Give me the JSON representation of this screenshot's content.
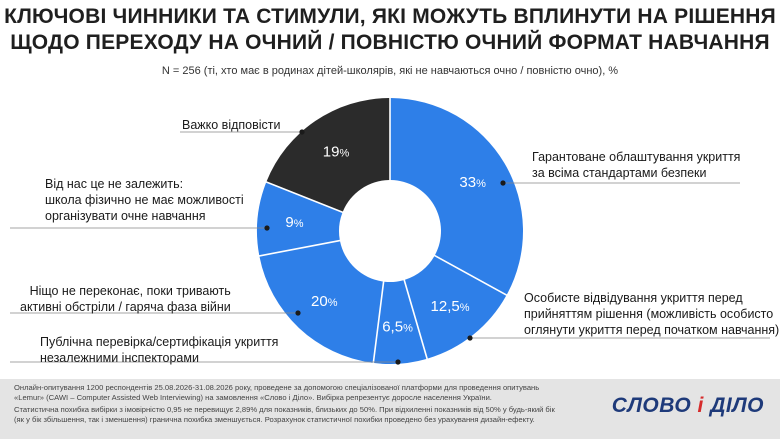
{
  "header": {
    "title_line1": "КЛЮЧОВІ ЧИННИКИ ТА СТИМУЛИ, ЯКІ МОЖУТЬ ВПЛИНУТИ НА РІШЕННЯ",
    "title_line2": "ЩОДО ПЕРЕХОДУ НА ОЧНИЙ / ПОВНІСТЮ ОЧНИЙ ФОРМАТ НАВЧАННЯ",
    "subtitle": "N = 256 (ті, хто має в родинах дітей-школярів, які не навчаються очно / повністю очно), %"
  },
  "chart_data": {
    "type": "pie",
    "variant": "donut",
    "unit": "%",
    "slices": [
      {
        "label_lines": [
          "Гарантоване облаштування укриття",
          "за всіма стандартами безпеки"
        ],
        "value": 33,
        "value_text": "33",
        "color": "#2e7fe8"
      },
      {
        "label_lines": [
          "Особисте відвідування укриття перед",
          "прийняттям рішення (можливість особисто",
          "оглянути укриття перед початком навчання)"
        ],
        "value": 12.5,
        "value_text": "12,5",
        "color": "#2e7fe8"
      },
      {
        "label_lines": [
          "Публічна перевірка/сертифікація укриття",
          "незалежними інспекторами"
        ],
        "value": 6.5,
        "value_text": "6,5",
        "color": "#2e7fe8"
      },
      {
        "label_lines": [
          "Ніщо не переконає, поки тривають",
          "активні обстріли / гаряча фаза війни"
        ],
        "value": 20,
        "value_text": "20",
        "color": "#2e7fe8"
      },
      {
        "label_lines": [
          "Від нас це не залежить:",
          "школа фізично не має можливості",
          "організувати очне навчання"
        ],
        "value": 9,
        "value_text": "9",
        "color": "#2e7fe8"
      },
      {
        "label_lines": [
          "Важко відповісти"
        ],
        "value": 19,
        "value_text": "19",
        "color": "#2b2b2b"
      }
    ]
  },
  "footer": {
    "lines": [
      "Онлайн-опитування 1200 респондентів 25.08.2026-31.08.2026 року, проведене за допомогою спеціалізованої платформи для проведення опитувань",
      "«Lemur» (CAWI – Computer Assisted Web Interviewing) на замовлення «Слово і Діло». Вибірка репрезентує доросле населення України.",
      "Статистична похибка вибірки з імовірністю 0,95 не перевищує 2,89% для показників, близьких до 50%. При відхиленні показників від 50% у будь-який бік",
      "(як у бік збільшення, так і зменшення) гранична похибка зменшується. Розрахунок статистичної похибки проведено без урахування дизайн-ефекту."
    ],
    "logo_left": "СЛОВО",
    "logo_amp": "і",
    "logo_right": "ДІЛО"
  }
}
